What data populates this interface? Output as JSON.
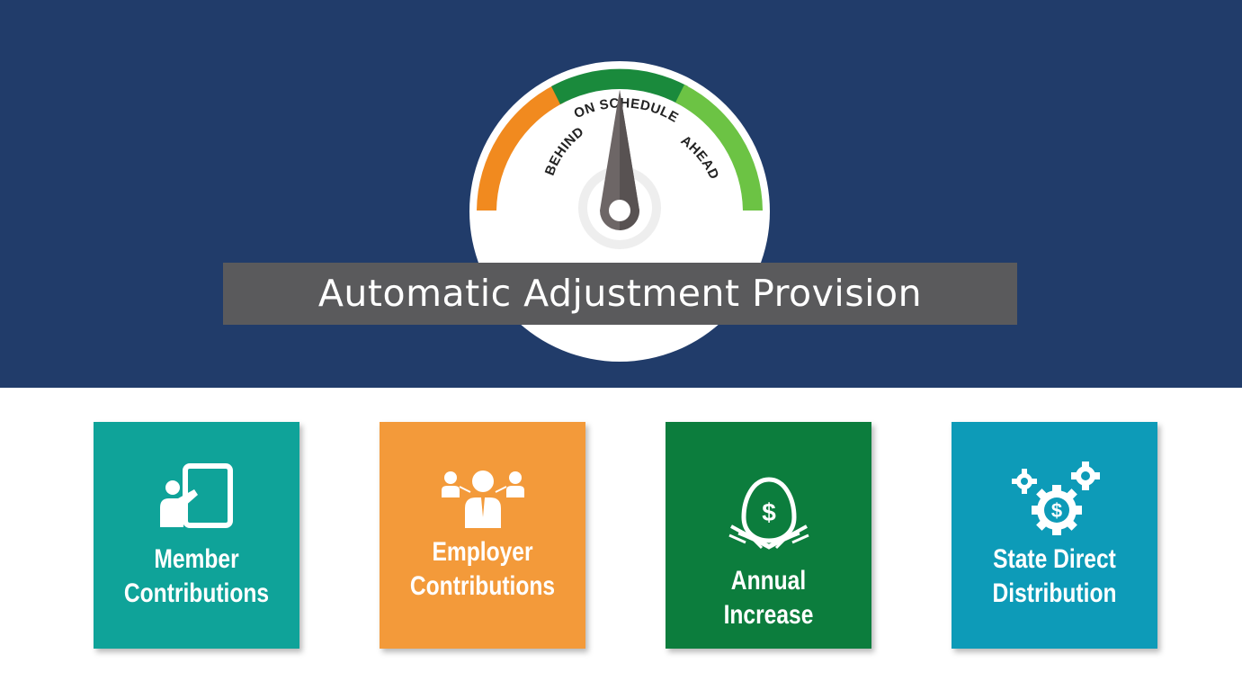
{
  "gauge": {
    "labels": {
      "behind": "BEHIND",
      "on_schedule": "ON SCHEDULE",
      "ahead": "AHEAD"
    },
    "colors": {
      "behind": "#f18a1f",
      "on_schedule": "#1a8a3c",
      "ahead": "#6cc344",
      "needle": "#6d6666"
    }
  },
  "title": "Automatic Adjustment Provision",
  "cards": [
    {
      "label": "Member\nContributions",
      "color": "#0fa399",
      "icon": "presentation-board-icon"
    },
    {
      "label": "Employer\nContributions",
      "color": "#f39a3a",
      "icon": "people-network-icon"
    },
    {
      "label": "Annual Increase",
      "color": "#0c7d3d",
      "icon": "nest-egg-dollar-icon"
    },
    {
      "label": "State Direct\nDistribution",
      "color": "#0d9bb8",
      "icon": "gears-dollar-icon"
    }
  ]
}
